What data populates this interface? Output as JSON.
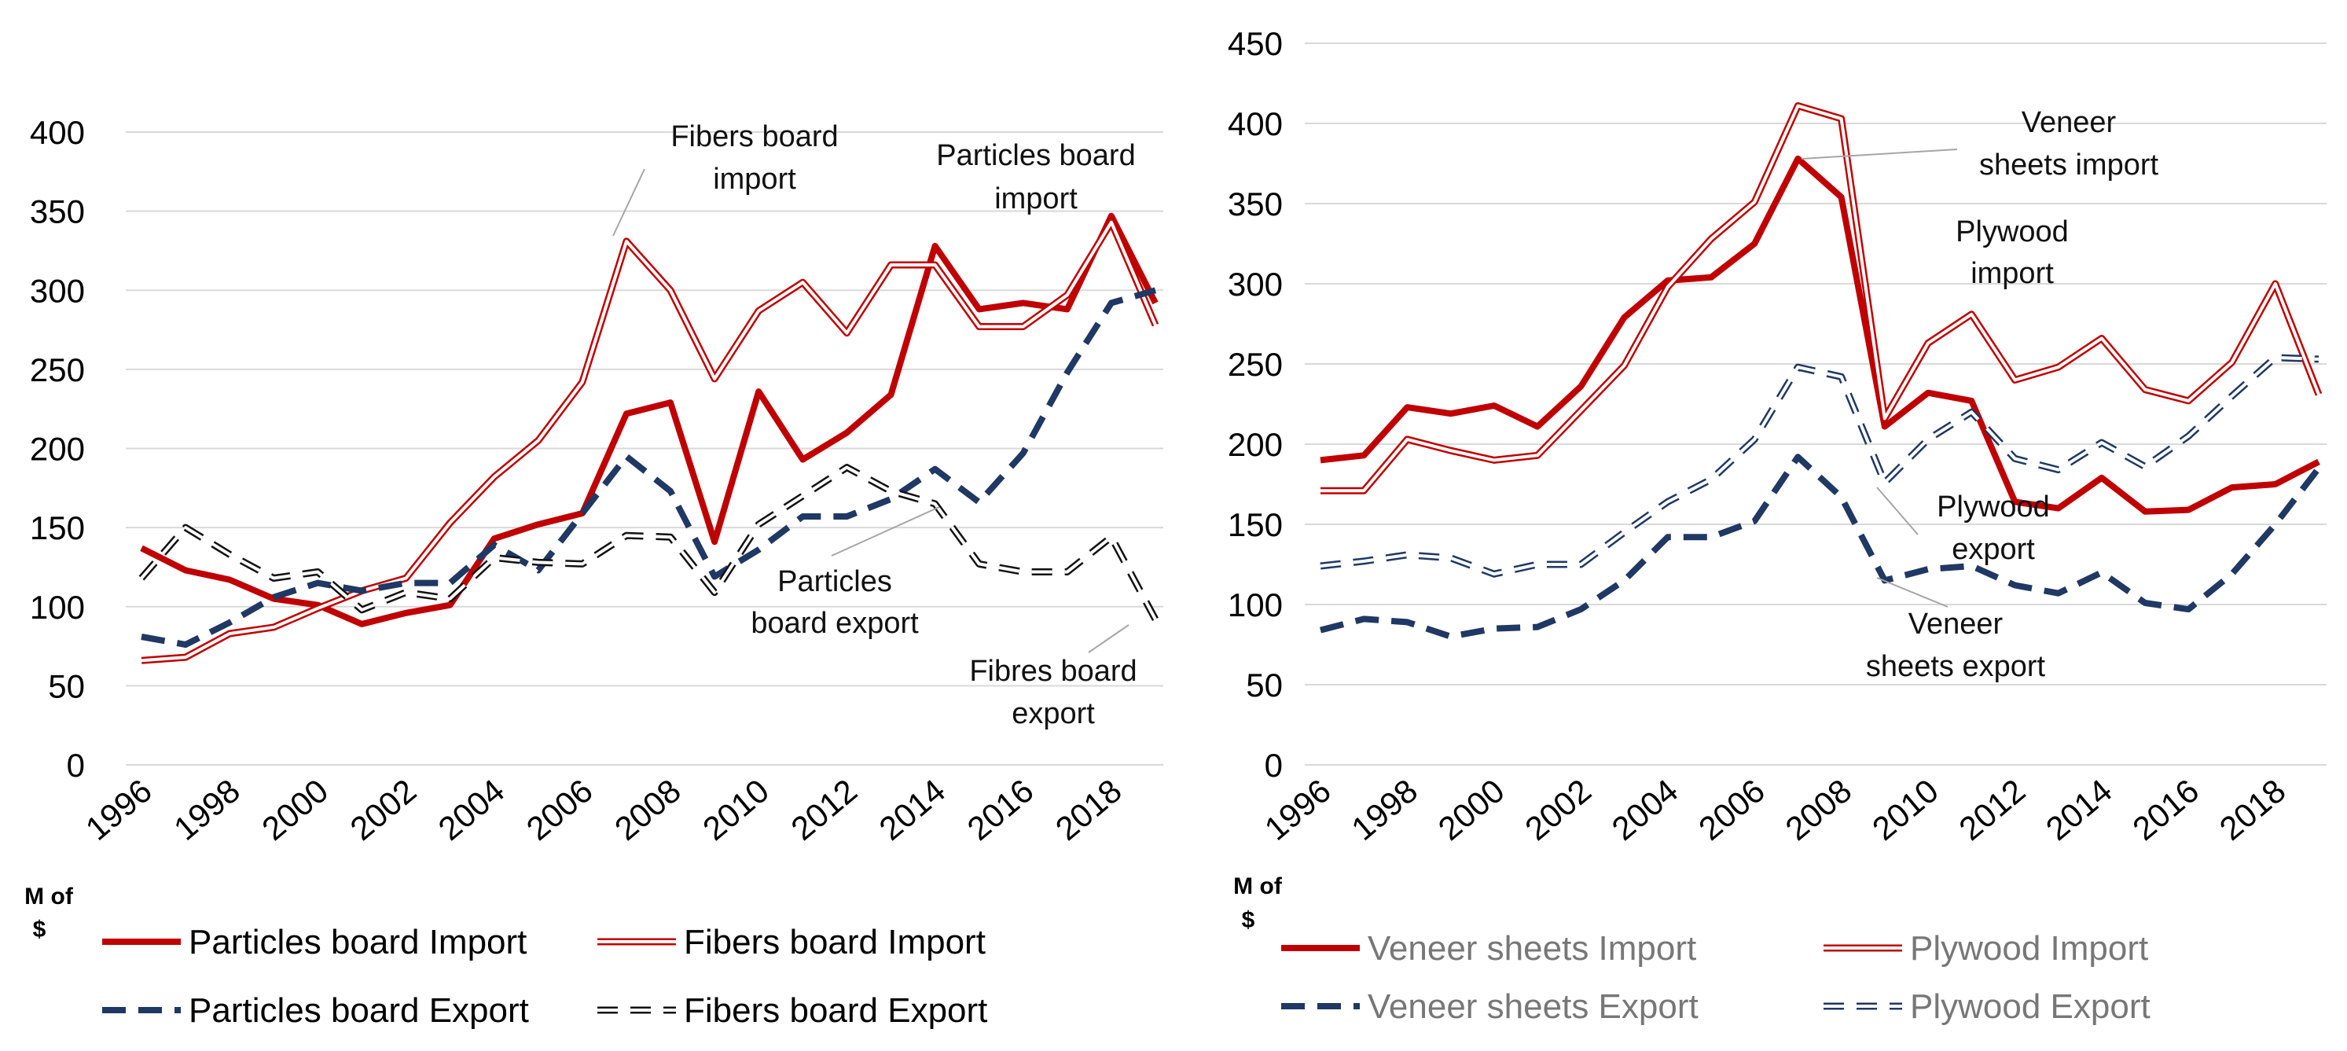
{
  "chart_data": [
    {
      "type": "line",
      "unit_label_line1": "M of",
      "unit_label_line2": "$",
      "x": [
        1996,
        1997,
        1998,
        1999,
        2000,
        2001,
        2002,
        2003,
        2004,
        2005,
        2006,
        2007,
        2008,
        2009,
        2010,
        2011,
        2012,
        2013,
        2014,
        2015,
        2016,
        2017,
        2018,
        2019
      ],
      "x_tick_labels": [
        "1996",
        "1998",
        "2000",
        "2002",
        "2004",
        "2006",
        "2008",
        "2010",
        "2012",
        "2014",
        "2016",
        "2018"
      ],
      "ylim": [
        0,
        400
      ],
      "y_ticks": [
        0,
        50,
        100,
        150,
        200,
        250,
        300,
        350,
        400
      ],
      "grid": true,
      "series": [
        {
          "name": "Particles board Import",
          "style": "solid-thick",
          "color": "#C00000",
          "values": [
            137,
            123,
            117,
            105,
            101,
            89,
            96,
            101,
            143,
            152,
            159,
            222,
            229,
            141,
            236,
            193,
            210,
            234,
            328,
            288,
            292,
            288,
            347,
            292
          ]
        },
        {
          "name": "Fibers board Import",
          "style": "double",
          "color": "#C00000",
          "values": [
            66,
            68,
            83,
            87,
            99,
            110,
            118,
            153,
            182,
            205,
            242,
            331,
            300,
            244,
            287,
            305,
            273,
            316,
            316,
            277,
            277,
            297,
            343,
            278
          ]
        },
        {
          "name": "Particles board Export",
          "style": "dashed",
          "color": "#1F3864",
          "values": [
            81,
            76,
            90,
            106,
            115,
            110,
            115,
            115,
            139,
            123,
            159,
            195,
            173,
            119,
            136,
            157,
            157,
            168,
            187,
            166,
            197,
            248,
            292,
            300
          ]
        },
        {
          "name": "Fibers board Export",
          "style": "double-dashed",
          "color": "#111111",
          "values": [
            118,
            150,
            133,
            118,
            122,
            98,
            109,
            105,
            131,
            128,
            127,
            145,
            144,
            109,
            152,
            170,
            188,
            173,
            165,
            127,
            122,
            122,
            144,
            92
          ]
        }
      ],
      "annotations": [
        {
          "text": [
            "Fibers board",
            "import"
          ]
        },
        {
          "text": [
            "Particles board",
            "import"
          ]
        },
        {
          "text": [
            "Particles",
            "board export"
          ]
        },
        {
          "text": [
            "Fibres board",
            "export"
          ]
        }
      ]
    },
    {
      "type": "line",
      "unit_label_line1": "M of",
      "unit_label_line2": "$",
      "x": [
        1996,
        1997,
        1998,
        1999,
        2000,
        2001,
        2002,
        2003,
        2004,
        2005,
        2006,
        2007,
        2008,
        2009,
        2010,
        2011,
        2012,
        2013,
        2014,
        2015,
        2016,
        2017,
        2018,
        2019
      ],
      "x_tick_labels": [
        "1996",
        "1998",
        "2000",
        "2002",
        "2004",
        "2006",
        "2008",
        "2010",
        "2012",
        "2014",
        "2016",
        "2018"
      ],
      "ylim": [
        0,
        450
      ],
      "y_ticks": [
        0,
        50,
        100,
        150,
        200,
        250,
        300,
        350,
        400,
        450
      ],
      "grid": true,
      "series": [
        {
          "name": "Veneer sheets Import",
          "style": "solid-thick",
          "color": "#C00000",
          "values": [
            190,
            193,
            223,
            219,
            224,
            211,
            236,
            279,
            302,
            304,
            325,
            378,
            354,
            211,
            232,
            227,
            164,
            160,
            179,
            158,
            159,
            173,
            175,
            189
          ]
        },
        {
          "name": "Plywood Import",
          "style": "double",
          "color": "#C00000",
          "values": [
            171,
            171,
            203,
            196,
            190,
            193,
            221,
            249,
            298,
            328,
            351,
            411,
            403,
            216,
            263,
            281,
            240,
            248,
            266,
            234,
            227,
            251,
            300,
            231
          ]
        },
        {
          "name": "Veneer sheets Export",
          "style": "dashed",
          "color": "#1F3864",
          "values": [
            84,
            91,
            89,
            80,
            85,
            86,
            97,
            115,
            142,
            142,
            152,
            192,
            167,
            115,
            122,
            124,
            112,
            107,
            120,
            101,
            97,
            119,
            150,
            185
          ]
        },
        {
          "name": "Plywood Export",
          "style": "double-dashed",
          "color": "#1F3864",
          "values": [
            124,
            127,
            131,
            129,
            119,
            125,
            125,
            145,
            164,
            178,
            203,
            248,
            242,
            176,
            203,
            220,
            191,
            184,
            201,
            186,
            205,
            230,
            254,
            253
          ]
        }
      ],
      "annotations": [
        {
          "text": [
            "Veneer",
            "sheets import"
          ]
        },
        {
          "text": [
            "Plywood",
            "import"
          ]
        },
        {
          "text": [
            "Plywood",
            "export"
          ]
        },
        {
          "text": [
            "Veneer",
            "sheets export"
          ]
        }
      ]
    }
  ]
}
